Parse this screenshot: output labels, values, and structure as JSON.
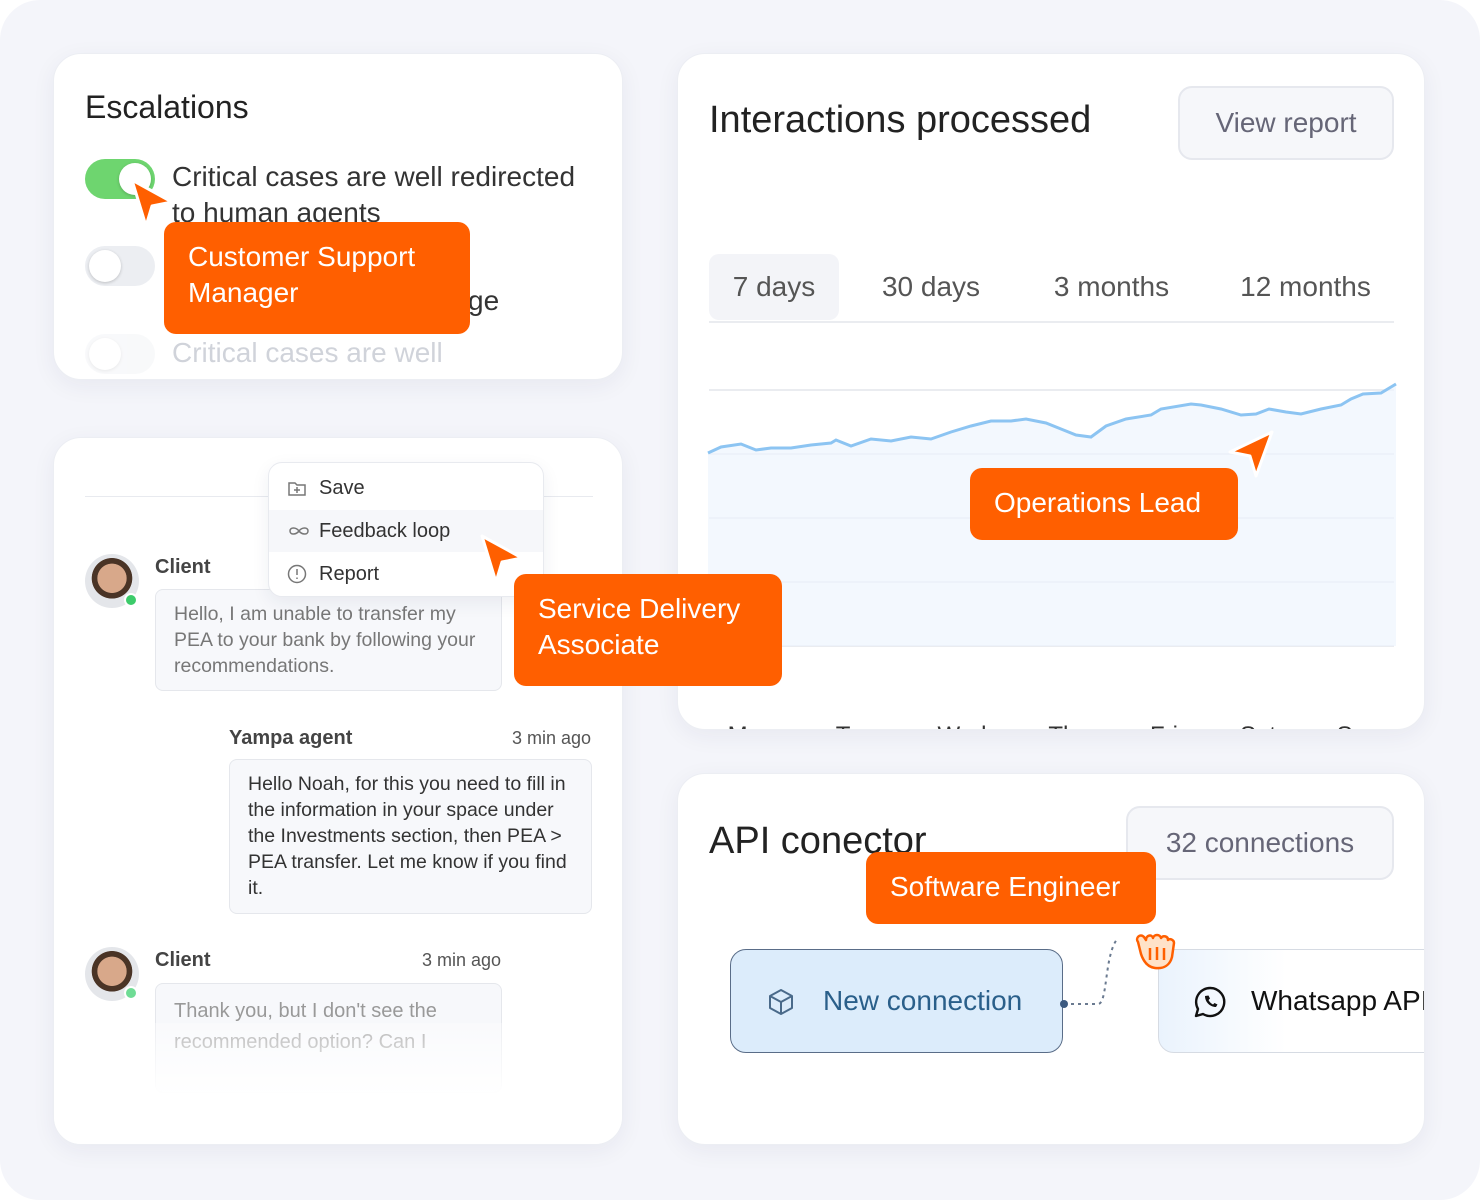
{
  "escalations": {
    "title": "Escalations",
    "toggles": [
      {
        "label": "Critical cases are well redirected to human agents",
        "on": true
      },
      {
        "label": "ge",
        "on": false
      },
      {
        "label": "Critical cases are well",
        "on": false
      }
    ]
  },
  "chat": {
    "menu": [
      "Save",
      "Feedback loop",
      "Report"
    ],
    "messages": [
      {
        "author": "Client",
        "text": "Hello, I am unable to transfer my PEA to your bank by following your recommendations."
      },
      {
        "author": "Yampa agent",
        "time": "3 min ago",
        "text": "Hello Noah, for this you need to fill in the information in your space under the Investments section, then PEA > PEA transfer. Let me know if you find it."
      },
      {
        "author": "Client",
        "time": "3 min ago",
        "text": "Thank you, but I don't see the recommended option? Can I"
      }
    ]
  },
  "interactions": {
    "title": "Interactions processed",
    "button": "View report",
    "tabs": [
      "7 days",
      "30 days",
      "3 months",
      "12 months"
    ],
    "active_tab": 0,
    "days": [
      "Mon",
      "Tue",
      "Wed",
      "Thu",
      "Fri",
      "Sat",
      "Sun"
    ]
  },
  "api": {
    "title": "API conector",
    "button": "32 connections",
    "nodes": [
      "New connection",
      "Whatsapp API"
    ]
  },
  "roles": [
    "Customer Support Manager",
    "Service Delivery Associate",
    "Operations Lead",
    "Software Engineer"
  ]
}
